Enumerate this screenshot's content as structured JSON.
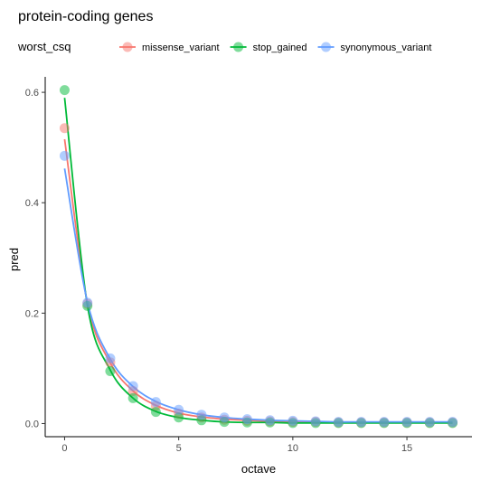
{
  "chart_data": {
    "type": "scatter",
    "title": "protein-coding genes",
    "xlabel": "octave",
    "ylabel": "pred",
    "xlim": [
      -0.85,
      17.85
    ],
    "ylim": [
      -0.0238,
      0.628
    ],
    "x_ticks": [
      0,
      5,
      10,
      15
    ],
    "y_ticks": [
      0.0,
      0.2,
      0.4,
      0.6
    ],
    "x_tick_labels": [
      "0",
      "5",
      "10",
      "15"
    ],
    "y_tick_labels": [
      "0.0",
      "0.2",
      "0.4",
      "0.6"
    ],
    "grid": false,
    "legend": {
      "title": "worst_csq",
      "placement": "top"
    },
    "x": [
      0,
      1,
      2,
      3,
      4,
      5,
      6,
      7,
      8,
      9,
      10,
      11,
      12,
      13,
      14,
      15,
      16,
      17
    ],
    "series": [
      {
        "name": "missense_variant",
        "color": "#F8766D",
        "points": [
          0.535,
          0.217,
          0.111,
          0.059,
          0.032,
          0.018,
          0.011,
          0.007,
          0.005,
          0.004,
          0.003,
          0.003,
          0.002,
          0.002,
          0.002,
          0.002,
          0.002,
          0.002
        ],
        "line": [
          0.515,
          0.218,
          0.11,
          0.059,
          0.033,
          0.019,
          0.012,
          0.008,
          0.006,
          0.004,
          0.003,
          0.003,
          0.002,
          0.002,
          0.002,
          0.002,
          0.002,
          0.002
        ]
      },
      {
        "name": "stop_gained",
        "color": "#00BA38",
        "points": [
          0.604,
          0.213,
          0.095,
          0.046,
          0.021,
          0.011,
          0.006,
          0.003,
          0.002,
          0.002,
          0.001,
          0.001,
          0.001,
          0.001,
          0.001,
          0.001,
          0.001,
          0.001
        ],
        "line": [
          0.59,
          0.214,
          0.097,
          0.046,
          0.022,
          0.011,
          0.006,
          0.003,
          0.002,
          0.002,
          0.001,
          0.001,
          0.001,
          0.001,
          0.001,
          0.001,
          0.001,
          0.001
        ]
      },
      {
        "name": "synonymous_variant",
        "color": "#619CFF",
        "points": [
          0.485,
          0.219,
          0.118,
          0.068,
          0.039,
          0.025,
          0.016,
          0.011,
          0.008,
          0.006,
          0.005,
          0.004,
          0.003,
          0.003,
          0.003,
          0.003,
          0.003,
          0.003
        ],
        "line": [
          0.462,
          0.22,
          0.117,
          0.067,
          0.04,
          0.025,
          0.016,
          0.011,
          0.008,
          0.006,
          0.005,
          0.004,
          0.003,
          0.003,
          0.003,
          0.003,
          0.003,
          0.003
        ]
      }
    ]
  }
}
